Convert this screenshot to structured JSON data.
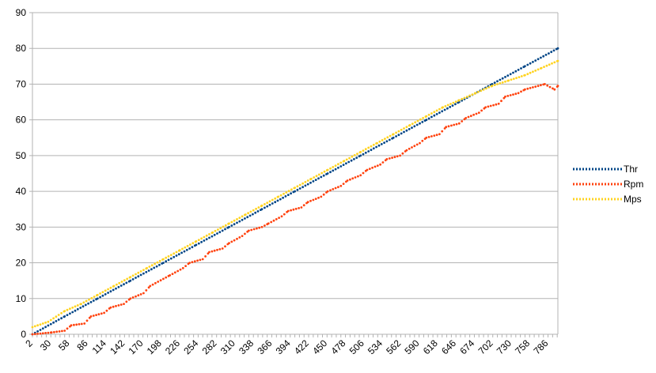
{
  "chart_data": {
    "type": "scatter",
    "title": "",
    "xlabel": "",
    "ylabel": "",
    "ylim": [
      0,
      90
    ],
    "yticks": [
      0,
      10,
      20,
      30,
      40,
      50,
      60,
      70,
      80,
      90
    ],
    "xlim": [
      1,
      800
    ],
    "xticks": [
      2,
      30,
      58,
      86,
      114,
      142,
      170,
      198,
      226,
      254,
      282,
      310,
      338,
      366,
      394,
      422,
      450,
      478,
      506,
      534,
      562,
      590,
      618,
      646,
      674,
      702,
      730,
      758,
      786
    ],
    "xtick_labels": [
      "2",
      "30",
      "58",
      "86",
      "114",
      "142",
      "170",
      "198",
      "226",
      "254",
      "282",
      "310",
      "338",
      "366",
      "394",
      "422",
      "450",
      "478",
      "506",
      "534",
      "562",
      "590",
      "618",
      "646",
      "674",
      "702",
      "730",
      "758",
      "786"
    ],
    "grid": "horizontal",
    "legend_position": "right",
    "series": [
      {
        "name": "Thr",
        "color": "#004586",
        "x": [
          1,
          50,
          100,
          150,
          200,
          250,
          300,
          350,
          400,
          450,
          500,
          550,
          600,
          650,
          700,
          750,
          800
        ],
        "values": [
          0,
          5,
          10,
          15,
          20,
          25,
          30,
          35,
          40,
          45,
          50,
          55,
          60,
          65,
          70,
          75,
          80
        ]
      },
      {
        "name": "Rpm",
        "color": "#ff420e",
        "x": [
          1,
          30,
          50,
          60,
          80,
          90,
          110,
          120,
          140,
          150,
          170,
          180,
          200,
          210,
          230,
          240,
          260,
          270,
          290,
          300,
          320,
          330,
          350,
          360,
          380,
          390,
          410,
          420,
          440,
          450,
          470,
          480,
          500,
          510,
          530,
          540,
          560,
          570,
          590,
          600,
          620,
          630,
          650,
          660,
          680,
          690,
          710,
          720,
          740,
          750,
          770,
          780,
          795,
          800
        ],
        "values": [
          0,
          0.5,
          1,
          2.5,
          3,
          5,
          6,
          7.5,
          8.5,
          10,
          11.5,
          13.5,
          15.5,
          16.5,
          18.5,
          20,
          21,
          23,
          24,
          25.5,
          27.5,
          29,
          30,
          31,
          33,
          34.5,
          35.5,
          37,
          38.5,
          40,
          41.5,
          43,
          44.5,
          46,
          47.5,
          49,
          50,
          51.5,
          53.5,
          55,
          56,
          58,
          59,
          60.5,
          62,
          63.5,
          64.5,
          66.5,
          67.5,
          68.5,
          69.5,
          70,
          68.5,
          69.5
        ]
      },
      {
        "name": "Mps",
        "color": "#ffd320",
        "x": [
          1,
          25,
          50,
          75,
          100,
          125,
          150,
          175,
          200,
          225,
          250,
          275,
          300,
          325,
          350,
          375,
          400,
          425,
          450,
          475,
          500,
          525,
          550,
          575,
          600,
          625,
          650,
          675,
          700,
          725,
          750,
          775,
          800
        ],
        "values": [
          2,
          3.5,
          6.5,
          8.5,
          11,
          13.5,
          16,
          18.5,
          21,
          23.5,
          26,
          28.5,
          31,
          33.5,
          36,
          38.5,
          41,
          43.5,
          46,
          48.5,
          51,
          53.5,
          56,
          58.5,
          61,
          63.5,
          65.5,
          67.5,
          69.5,
          71,
          72.5,
          74.5,
          76.5
        ]
      }
    ]
  }
}
